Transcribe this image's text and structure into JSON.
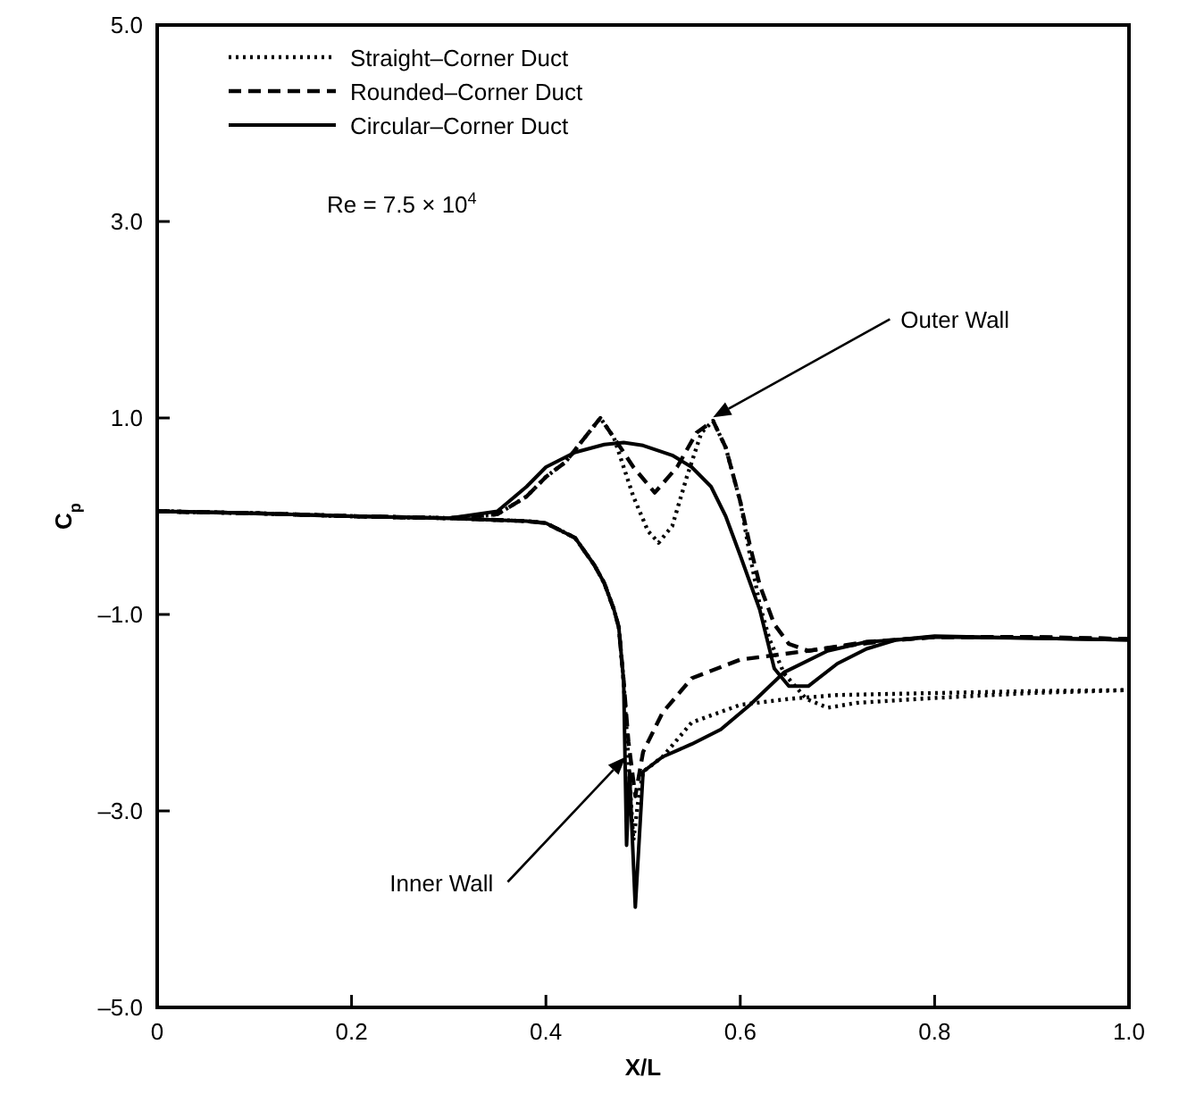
{
  "chart_data": {
    "type": "line",
    "xlabel": "X/L",
    "ylabel": "C$_{p}$",
    "xlim": [
      0,
      1
    ],
    "ylim": [
      -5,
      5
    ],
    "xticks": [
      0,
      0.2,
      0.4,
      0.6,
      0.8,
      {
        "value": 1,
        "label": "1.0"
      }
    ],
    "yticks": [
      {
        "value": -5,
        "label": "–5.0"
      },
      {
        "value": -3,
        "label": "–3.0"
      },
      {
        "value": -1,
        "label": "–1.0"
      },
      {
        "value": 1,
        "label": "1.0"
      },
      {
        "value": 3,
        "label": "3.0"
      },
      {
        "value": 5,
        "label": "5.0"
      }
    ],
    "grid": false,
    "legend": "top left",
    "annotations": [
      "Re = 7.5 × 10$^{4}$",
      "Outer Wall",
      "Inner Wall"
    ],
    "series": [
      {
        "name": "Straight–Corner Duct",
        "color": "#000000",
        "line_style": "dotted",
        "x": [
          0,
          0.1,
          0.2,
          0.3,
          0.35,
          0.38,
          0.4,
          0.42,
          0.44,
          0.456,
          0.47,
          0.49,
          0.505,
          0.516,
          0.53,
          0.545,
          0.56,
          0.572,
          0.585,
          0.6,
          0.61,
          0.62,
          0.63,
          0.645,
          0.668,
          0.69,
          0.72,
          0.8,
          0.9,
          1.0
        ],
        "values": [
          0.05,
          0.03,
          0.0,
          -0.02,
          0.02,
          0.2,
          0.4,
          0.55,
          0.8,
          1.0,
          0.8,
          0.2,
          -0.15,
          -0.27,
          -0.1,
          0.4,
          0.85,
          0.97,
          0.7,
          0.15,
          -0.4,
          -0.9,
          -1.25,
          -1.6,
          -1.86,
          -1.95,
          -1.9,
          -1.85,
          -1.8,
          -1.77
        ]
      },
      {
        "name": "Rounded–Corner Duct",
        "color": "#000000",
        "line_style": "dashed",
        "x": [
          0,
          0.1,
          0.2,
          0.3,
          0.35,
          0.38,
          0.4,
          0.42,
          0.44,
          0.456,
          0.47,
          0.49,
          0.512,
          0.535,
          0.555,
          0.572,
          0.585,
          0.6,
          0.61,
          0.62,
          0.635,
          0.65,
          0.67,
          0.7,
          0.75,
          0.8,
          0.9,
          1.0
        ],
        "values": [
          0.05,
          0.03,
          0,
          -0.02,
          0.02,
          0.2,
          0.4,
          0.55,
          0.8,
          1.0,
          0.8,
          0.5,
          0.24,
          0.5,
          0.85,
          0.97,
          0.7,
          0.15,
          -0.3,
          -0.7,
          -1.1,
          -1.3,
          -1.37,
          -1.33,
          -1.27,
          -1.23,
          -1.23,
          -1.25
        ]
      },
      {
        "name": "Circular–Corner Duct",
        "color": "#000000",
        "line_style": "solid",
        "x": [
          0,
          0.1,
          0.2,
          0.3,
          0.35,
          0.38,
          0.4,
          0.43,
          0.46,
          0.48,
          0.5,
          0.53,
          0.55,
          0.57,
          0.585,
          0.6,
          0.62,
          0.635,
          0.65,
          0.67,
          0.7,
          0.73,
          0.76,
          0.8,
          0.9,
          1.0
        ],
        "values": [
          0.05,
          0.03,
          0,
          -0.02,
          0.05,
          0.3,
          0.5,
          0.65,
          0.73,
          0.75,
          0.72,
          0.62,
          0.5,
          0.3,
          0.0,
          -0.4,
          -0.95,
          -1.55,
          -1.73,
          -1.73,
          -1.5,
          -1.35,
          -1.26,
          -1.22,
          -1.24,
          -1.26
        ]
      },
      {
        "color": "#000000",
        "line_style": "dotted",
        "x": [
          0,
          0.1,
          0.2,
          0.3,
          0.38,
          0.4,
          0.43,
          0.45,
          0.46,
          0.47,
          0.475,
          0.48,
          0.485,
          0.49,
          0.495,
          0.5,
          0.52,
          0.55,
          0.6,
          0.65,
          0.7,
          0.8,
          0.9,
          1.0
        ],
        "values": [
          0.05,
          0.03,
          0,
          -0.02,
          -0.05,
          -0.07,
          -0.22,
          -0.5,
          -0.68,
          -0.95,
          -1.13,
          -1.68,
          -2.5,
          -3.3,
          -2.9,
          -2.6,
          -2.45,
          -2.1,
          -1.92,
          -1.86,
          -1.82,
          -1.8,
          -1.78,
          -1.77
        ]
      },
      {
        "color": "#000000",
        "line_style": "dashed",
        "x": [
          0,
          0.1,
          0.2,
          0.3,
          0.38,
          0.4,
          0.43,
          0.45,
          0.46,
          0.47,
          0.475,
          0.48,
          0.485,
          0.492,
          0.5,
          0.52,
          0.55,
          0.6,
          0.67,
          0.73,
          0.8,
          0.9,
          1.0
        ],
        "values": [
          0.05,
          0.03,
          0,
          -0.02,
          -0.05,
          -0.07,
          -0.22,
          -0.5,
          -0.68,
          -0.95,
          -1.13,
          -1.68,
          -2.3,
          -2.85,
          -2.4,
          -2.0,
          -1.65,
          -1.46,
          -1.37,
          -1.28,
          -1.23,
          -1.23,
          -1.25
        ]
      },
      {
        "color": "#000000",
        "line_style": "solid",
        "x": [
          0,
          0.1,
          0.2,
          0.3,
          0.38,
          0.4,
          0.43,
          0.45,
          0.46,
          0.47,
          0.475,
          0.48,
          0.483,
          0.486,
          0.492,
          0.5,
          0.52,
          0.55,
          0.58,
          0.61,
          0.645,
          0.69,
          0.73,
          0.76,
          0.8,
          0.9,
          1.0
        ],
        "values": [
          0.05,
          0.03,
          0,
          -0.02,
          -0.05,
          -0.07,
          -0.22,
          -0.5,
          -0.68,
          -0.95,
          -1.13,
          -1.68,
          -3.35,
          -2.6,
          -3.98,
          -2.6,
          -2.45,
          -2.32,
          -2.17,
          -1.92,
          -1.59,
          -1.37,
          -1.28,
          -1.26,
          -1.23,
          -1.24,
          -1.26
        ]
      }
    ]
  }
}
